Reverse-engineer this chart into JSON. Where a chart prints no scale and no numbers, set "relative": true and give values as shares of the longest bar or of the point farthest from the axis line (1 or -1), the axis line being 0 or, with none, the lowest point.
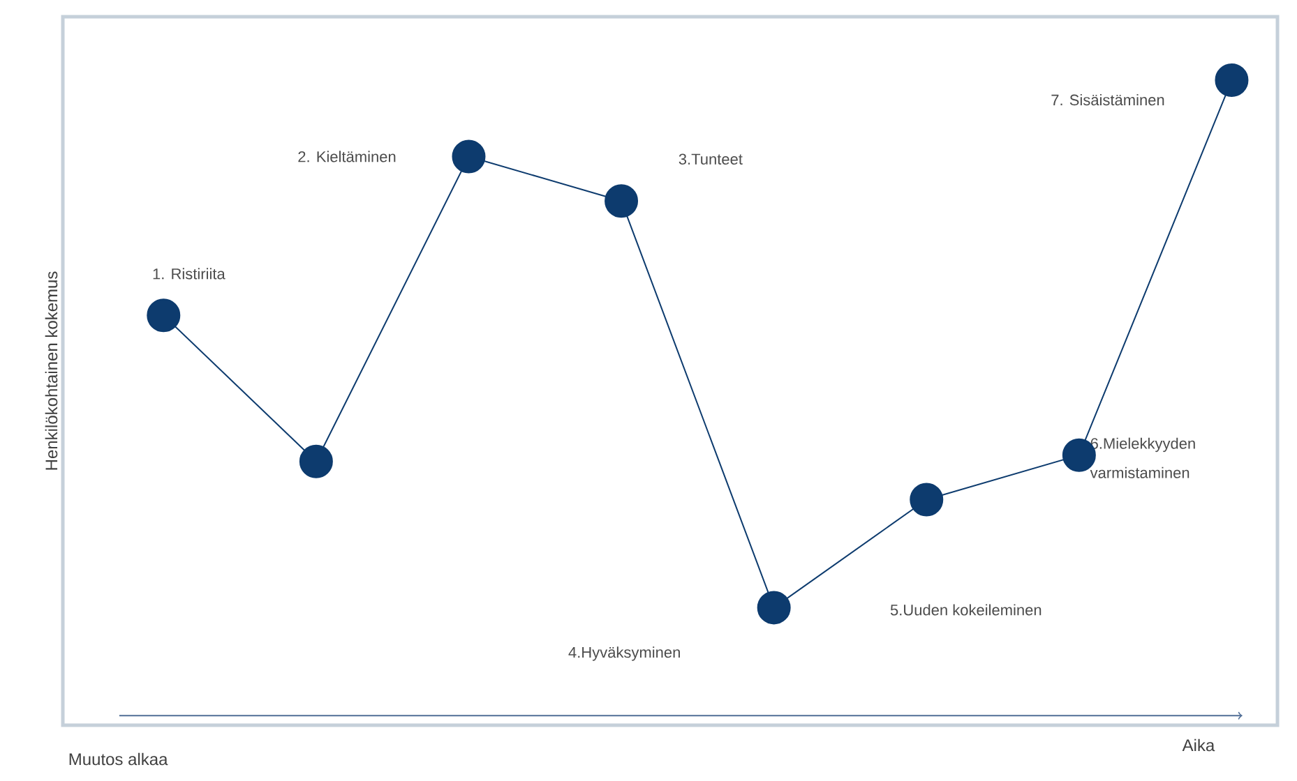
{
  "chart_data": {
    "type": "line",
    "relative": true,
    "xlabel": "Aika",
    "ylabel": "Henkilökohtainen kokemus",
    "categories": [
      null,
      null,
      null,
      null,
      null,
      null,
      null,
      null
    ],
    "marker": "circle",
    "line_style": "solid",
    "series": [
      {
        "color": "#0d3b6e",
        "values": [
          0.63,
          0.4,
          0.88,
          0.81,
          0.17,
          0.34,
          0.41,
          1.0
        ]
      }
    ],
    "annotations": [
      "Muutos alkaa",
      "1. Ristiriita",
      "2. Kieltäminen",
      "3.Tunteet",
      "4.Hyväksyminen",
      "5.Uuden kokeileminen",
      "6.Mielekkyyden varmistaminen",
      "7. Sisäistäminen"
    ]
  }
}
